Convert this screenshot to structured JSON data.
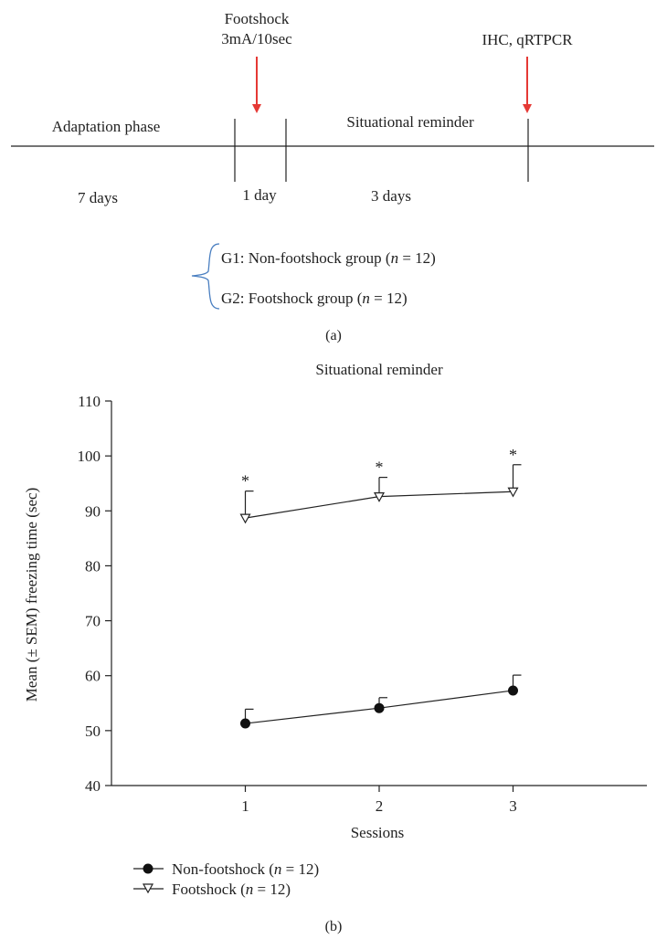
{
  "panel_a": {
    "footshock_label_line1": "Footshock",
    "footshock_label_line2": "3mA/10sec",
    "end_label": "IHC, qRTPCR",
    "phases": [
      "Adaptation phase",
      "Situational reminder"
    ],
    "durations": [
      "7 days",
      "1 day",
      "3 days"
    ],
    "group1": {
      "prefix": "G1: Non-footshock group (",
      "n": "n",
      "suffix": " = 12)"
    },
    "group2": {
      "prefix": "G2: Footshock group (",
      "n": "n",
      "suffix": " = 12)"
    },
    "caption": "(a)",
    "arrow_color": "#e53935",
    "brace_color": "#4a7fc1"
  },
  "panel_b": {
    "caption": "(b)"
  },
  "chart_data": {
    "type": "line",
    "title": "Situational reminder",
    "xlabel": "Sessions",
    "ylabel": "Mean (± SEM) freezing time (sec)",
    "categories": [
      "1",
      "2",
      "3"
    ],
    "x": [
      1,
      2,
      3
    ],
    "xlim": [
      0,
      4
    ],
    "ylim": [
      40,
      110
    ],
    "yticks": [
      40,
      50,
      60,
      70,
      80,
      90,
      100,
      110
    ],
    "series": [
      {
        "name_prefix": "Non-footshock (",
        "name_n": "n",
        "name_suffix": " = 12)",
        "marker": "filled-circle",
        "values": [
          51.3,
          54.1,
          57.3
        ],
        "sem": [
          2.6,
          1.9,
          2.8
        ],
        "significance": [
          "",
          "",
          ""
        ]
      },
      {
        "name_prefix": "Footshock (",
        "name_n": "n",
        "name_suffix": " = 12)",
        "marker": "open-triangle-down",
        "values": [
          88.7,
          92.6,
          93.5
        ],
        "sem": [
          4.9,
          3.5,
          4.9
        ],
        "significance": [
          "*",
          "*",
          "*"
        ]
      }
    ],
    "legend_position": "bottom-left",
    "grid": false
  }
}
